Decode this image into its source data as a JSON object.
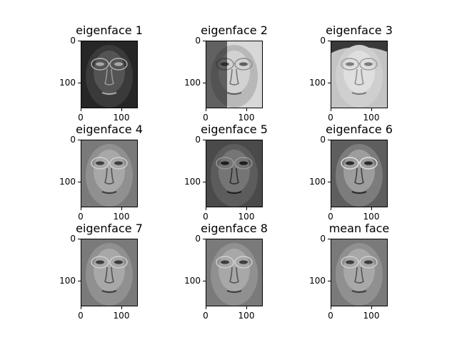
{
  "figure": {
    "panels": [
      {
        "title": "eigenface 1",
        "tone": "dark-inverted"
      },
      {
        "title": "eigenface 2",
        "tone": "shadow-left"
      },
      {
        "title": "eigenface 3",
        "tone": "light-washed"
      },
      {
        "title": "eigenface 4",
        "tone": "mid"
      },
      {
        "title": "eigenface 5",
        "tone": "dark"
      },
      {
        "title": "eigenface 6",
        "tone": "mid-contrast"
      },
      {
        "title": "eigenface 7",
        "tone": "mid"
      },
      {
        "title": "eigenface 8",
        "tone": "mid"
      },
      {
        "title": "mean face",
        "tone": "mid"
      }
    ],
    "y_ticks": [
      "0",
      "100"
    ],
    "x_ticks": [
      "0",
      "100"
    ]
  },
  "image_extent": {
    "x": [
      0,
      140
    ],
    "y": [
      0,
      160
    ]
  },
  "colormap": "gray"
}
